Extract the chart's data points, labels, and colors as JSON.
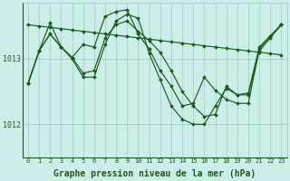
{
  "background_color": "#cceee8",
  "grid_color": "#99ccbb",
  "line_color": "#1a5c1a",
  "marker_color": "#1a5c1a",
  "xlabel": "Graphe pression niveau de la mer (hPa)",
  "xlabel_fontsize": 7.0,
  "xticks": [
    0,
    1,
    2,
    3,
    4,
    5,
    6,
    7,
    8,
    9,
    10,
    11,
    12,
    13,
    14,
    15,
    16,
    17,
    18,
    19,
    20,
    21,
    22,
    23
  ],
  "ytick_labels": [
    "1012",
    "1013"
  ],
  "ylim": [
    1011.5,
    1013.85
  ],
  "xlim": [
    -0.5,
    23.5
  ],
  "series": [
    [
      1012.62,
      1013.12,
      1013.38,
      1013.18,
      1013.02,
      1012.78,
      1012.82,
      1013.32,
      1013.52,
      1013.58,
      1013.42,
      1013.28,
      1013.1,
      1012.82,
      1012.5,
      1012.28,
      1012.12,
      1012.15,
      1012.58,
      1012.45,
      1012.48,
      1013.18,
      1013.35,
      1013.52
    ],
    [
      1012.62,
      1013.12,
      1013.38,
      1013.18,
      1013.0,
      1012.72,
      1012.72,
      1013.22,
      1013.58,
      1013.68,
      1013.62,
      1013.08,
      1012.68,
      1012.28,
      1012.08,
      1012.0,
      1012.0,
      1012.28,
      1012.55,
      1012.45,
      1012.45,
      1013.12,
      1013.32,
      1013.52
    ],
    [
      1013.52,
      1013.5,
      1013.48,
      1013.46,
      1013.44,
      1013.42,
      1013.4,
      1013.38,
      1013.36,
      1013.34,
      1013.32,
      1013.3,
      1013.28,
      1013.26,
      1013.24,
      1013.22,
      1013.2,
      1013.18,
      1013.16,
      1013.14,
      1013.12,
      1013.1,
      1013.08,
      1013.06
    ],
    [
      1012.62,
      1013.12,
      1013.55,
      1013.18,
      1013.02,
      1013.22,
      1013.18,
      1013.65,
      1013.72,
      1013.75,
      1013.38,
      1013.15,
      1012.82,
      1012.58,
      1012.28,
      1012.32,
      1012.72,
      1012.52,
      1012.38,
      1012.32,
      1012.32,
      1013.15,
      1013.35,
      1013.52
    ]
  ]
}
